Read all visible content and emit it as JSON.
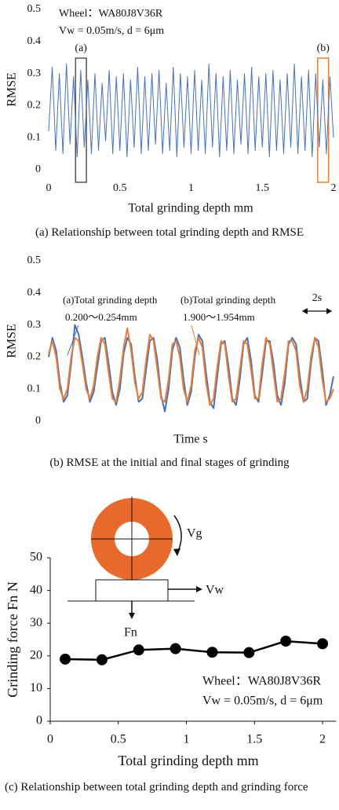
{
  "chart_data": [
    {
      "type": "line",
      "caption": "(a) Relationship between total grinding depth and RMSE",
      "xlabel": "Total grinding depth  mm",
      "ylabel": "RMSE",
      "annotations": [
        "Wheel：WA80J8V36R",
        "Vw = 0.05m/s, d = 6μm"
      ],
      "xlim": [
        0,
        2
      ],
      "ylim": [
        0,
        0.5
      ],
      "xticks": [
        0,
        0.5,
        1,
        1.5,
        2
      ],
      "yticks": [
        0,
        0.1,
        0.2,
        0.3,
        0.4,
        0.5
      ],
      "x": [
        0,
        0.025,
        0.05,
        0.075,
        0.1,
        0.125,
        0.15,
        0.175,
        0.2,
        0.225,
        0.25,
        0.275,
        0.3,
        0.325,
        0.35,
        0.375,
        0.4,
        0.425,
        0.45,
        0.475,
        0.5,
        0.525,
        0.55,
        0.575,
        0.6,
        0.625,
        0.65,
        0.675,
        0.7,
        0.725,
        0.75,
        0.775,
        0.8,
        0.825,
        0.85,
        0.875,
        0.9,
        0.925,
        0.95,
        0.975,
        1,
        1.025,
        1.05,
        1.075,
        1.1,
        1.125,
        1.15,
        1.175,
        1.2,
        1.225,
        1.25,
        1.275,
        1.3,
        1.325,
        1.35,
        1.375,
        1.4,
        1.425,
        1.45,
        1.475,
        1.5,
        1.525,
        1.55,
        1.575,
        1.6,
        1.625,
        1.65,
        1.675,
        1.7,
        1.725,
        1.75,
        1.775,
        1.8,
        1.825,
        1.85,
        1.875,
        1.9,
        1.925,
        1.95,
        1.975,
        2
      ],
      "series": [
        {
          "color": "#4472c4",
          "values": [
            0.12,
            0.32,
            0.06,
            0.3,
            0.05,
            0.33,
            0.08,
            0.29,
            0.04,
            0.31,
            0.07,
            0.28,
            0.05,
            0.3,
            0.06,
            0.27,
            0.09,
            0.31,
            0.05,
            0.29,
            0.06,
            0.3,
            0.04,
            0.28,
            0.07,
            0.32,
            0.05,
            0.29,
            0.06,
            0.3,
            0.08,
            0.31,
            0.05,
            0.27,
            0.06,
            0.32,
            0.04,
            0.3,
            0.07,
            0.29,
            0.05,
            0.31,
            0.06,
            0.28,
            0.05,
            0.33,
            0.07,
            0.3,
            0.04,
            0.29,
            0.06,
            0.31,
            0.05,
            0.28,
            0.08,
            0.3,
            0.05,
            0.32,
            0.06,
            0.29,
            0.07,
            0.3,
            0.04,
            0.31,
            0.06,
            0.28,
            0.05,
            0.3,
            0.07,
            0.33,
            0.05,
            0.29,
            0.06,
            0.31,
            0.04,
            0.3,
            0.07,
            0.28,
            0.05,
            0.29,
            0.1
          ]
        }
      ],
      "highlights": [
        {
          "label": "(a)",
          "range": [
            0.2,
            0.254
          ],
          "color": "#555555"
        },
        {
          "label": "(b)",
          "range": [
            1.9,
            1.954
          ],
          "color": "#ed7d31"
        }
      ]
    },
    {
      "type": "line",
      "caption": "(b) RMSE at the initial and final stages of grinding",
      "xlabel": "Time s",
      "ylabel": "RMSE",
      "xlim": [
        0,
        19
      ],
      "ylim": [
        0,
        0.5
      ],
      "yticks": [
        0,
        0.1,
        0.2,
        0.3,
        0.4,
        0.5
      ],
      "x": [
        0,
        0.25,
        0.5,
        0.75,
        1,
        1.25,
        1.5,
        1.75,
        2,
        2.25,
        2.5,
        2.75,
        3,
        3.25,
        3.5,
        3.75,
        4,
        4.25,
        4.5,
        4.75,
        5,
        5.25,
        5.5,
        5.75,
        6,
        6.25,
        6.5,
        6.75,
        7,
        7.25,
        7.5,
        7.75,
        8,
        8.25,
        8.5,
        8.75,
        9,
        9.25,
        9.5,
        9.75,
        10,
        10.25,
        10.5,
        10.75,
        11,
        11.25,
        11.5,
        11.75,
        12,
        12.25,
        12.5,
        12.75,
        13,
        13.25,
        13.5,
        13.75,
        14,
        14.25,
        14.5,
        14.75,
        15,
        15.25,
        15.5,
        15.75,
        16,
        16.25,
        16.5,
        16.75,
        17,
        17.25,
        17.5,
        17.75,
        18,
        18.25,
        18.5,
        18.75,
        19
      ],
      "series": [
        {
          "name": "(a)Total grinding depth",
          "note": "0.200～0.254mm",
          "color": "#4472c4",
          "values": [
            0.2,
            0.26,
            0.22,
            0.12,
            0.06,
            0.08,
            0.18,
            0.3,
            0.27,
            0.2,
            0.12,
            0.06,
            0.09,
            0.17,
            0.25,
            0.26,
            0.18,
            0.09,
            0.05,
            0.1,
            0.21,
            0.26,
            0.24,
            0.14,
            0.06,
            0.07,
            0.16,
            0.25,
            0.26,
            0.19,
            0.08,
            0.03,
            0.1,
            0.22,
            0.26,
            0.23,
            0.13,
            0.05,
            0.09,
            0.2,
            0.27,
            0.25,
            0.15,
            0.06,
            0.04,
            0.14,
            0.24,
            0.25,
            0.17,
            0.07,
            0.05,
            0.13,
            0.24,
            0.26,
            0.19,
            0.08,
            0.06,
            0.15,
            0.25,
            0.25,
            0.18,
            0.08,
            0.05,
            0.12,
            0.24,
            0.26,
            0.24,
            0.14,
            0.06,
            0.07,
            0.18,
            0.26,
            0.25,
            0.16,
            0.05,
            0.08,
            0.14
          ]
        },
        {
          "name": "(b)Total grinding depth",
          "note": "1.900～1.954mm",
          "color": "#ed7d31",
          "values": [
            0.21,
            0.25,
            0.2,
            0.1,
            0.07,
            0.1,
            0.2,
            0.26,
            0.25,
            0.18,
            0.1,
            0.07,
            0.11,
            0.2,
            0.26,
            0.24,
            0.15,
            0.07,
            0.06,
            0.13,
            0.23,
            0.29,
            0.22,
            0.12,
            0.07,
            0.09,
            0.19,
            0.27,
            0.25,
            0.16,
            0.07,
            0.06,
            0.13,
            0.24,
            0.25,
            0.2,
            0.1,
            0.06,
            0.11,
            0.22,
            0.26,
            0.23,
            0.12,
            0.05,
            0.07,
            0.17,
            0.25,
            0.24,
            0.14,
            0.06,
            0.07,
            0.16,
            0.25,
            0.24,
            0.16,
            0.07,
            0.07,
            0.18,
            0.26,
            0.24,
            0.15,
            0.06,
            0.07,
            0.15,
            0.25,
            0.25,
            0.22,
            0.11,
            0.06,
            0.1,
            0.2,
            0.26,
            0.23,
            0.13,
            0.06,
            0.07,
            0.1
          ]
        }
      ],
      "scale_bar": {
        "label": "2s",
        "length": 2
      }
    },
    {
      "type": "line",
      "markers": true,
      "axes": true,
      "caption": "(c) Relationship between total grinding depth and grinding force",
      "xlabel": "Total grinding depth  mm",
      "ylabel": "Grinding  force  Fn N",
      "annotations": [
        "Wheel：WA80J8V36R",
        "Vw = 0.05m/s, d = 6μm"
      ],
      "diagram_labels": {
        "wheel_speed": "Vg",
        "table_speed": "Vw",
        "normal_force": "Fn"
      },
      "wheel_color": "#e8692a",
      "xlim": [
        0,
        2.1
      ],
      "ylim": [
        0,
        50
      ],
      "xticks": [
        0,
        0.5,
        1,
        1.5,
        2
      ],
      "yticks": [
        0,
        10,
        20,
        30,
        40,
        50
      ],
      "x": [
        0.11,
        0.38,
        0.65,
        0.92,
        1.19,
        1.46,
        1.73,
        2.0
      ],
      "series": [
        {
          "color": "#000000",
          "values": [
            19.0,
            18.8,
            21.8,
            22.2,
            21.1,
            21.0,
            24.5,
            23.7
          ]
        }
      ]
    }
  ]
}
